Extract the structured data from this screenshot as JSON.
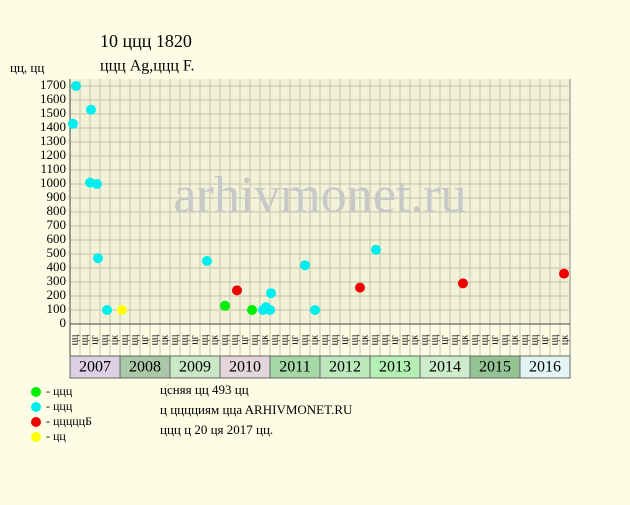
{
  "chart_data": {
    "type": "scatter",
    "title": "10 ццц 1820",
    "subtitle": "ццц Ag,ццц F.",
    "y_label": "цц, цц",
    "watermark": "arhivmonet.ru",
    "xlim": [
      2007,
      2017
    ],
    "ylim": [
      0,
      1700
    ],
    "yticks": [
      0,
      100,
      200,
      300,
      400,
      500,
      600,
      700,
      800,
      900,
      1000,
      1100,
      1200,
      1300,
      1400,
      1500,
      1600,
      1700
    ],
    "grid": true,
    "years": [
      "2007",
      "2008",
      "2009",
      "2010",
      "2011",
      "2012",
      "2013",
      "2014",
      "2015",
      "2016"
    ],
    "year_colors": [
      "#ddd0e4",
      "#a8c8a8",
      "#c8e8c8",
      "#e4d4dc",
      "#a4d8a4",
      "#bce8bc",
      "#b4f0b4",
      "#cceccc",
      "#94c494",
      "#e4f4f4"
    ],
    "month_labels": [
      "цц",
      "цц",
      "цг",
      "цц",
      "цк"
    ],
    "series": [
      {
        "name": "- ццц",
        "color": "#00ee00",
        "x": [
          2010.1,
          2010.64
        ],
        "values": [
          130,
          100
        ]
      },
      {
        "name": "- ццц",
        "color": "#00eeee",
        "x": [
          2007.06,
          2007.12,
          2007.42,
          2007.4,
          2007.54,
          2007.56,
          2007.74,
          2009.74,
          2010.86,
          2010.92,
          2011.0,
          2011.02,
          2011.7,
          2011.9,
          2013.12
        ],
        "values": [
          1430,
          1700,
          1530,
          1010,
          1000,
          470,
          100,
          450,
          100,
          120,
          100,
          220,
          420,
          100,
          530
        ]
      },
      {
        "name": "- цццццБ",
        "color": "#ee0000",
        "x": [
          2010.34,
          2012.8,
          2014.86,
          2016.88
        ],
        "values": [
          240,
          260,
          290,
          360
        ]
      },
      {
        "name": "- цц",
        "color": "#ffff00",
        "x": [
          2008.04
        ],
        "values": [
          100
        ]
      }
    ],
    "notes": [
      "цcняя цц 493 цц",
      "ц цццциям ццa ARHIVMONET.RU",
      "ццц ц 20 ця 2017 цц."
    ]
  }
}
